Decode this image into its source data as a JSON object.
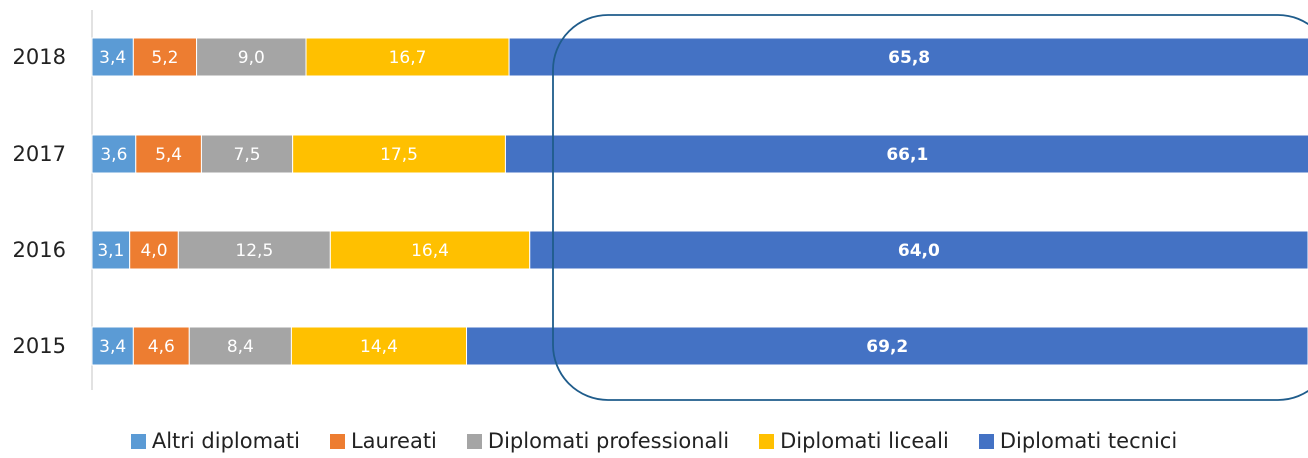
{
  "chart_data": {
    "type": "bar",
    "orientation": "horizontal",
    "stacked": true,
    "categories": [
      "2018",
      "2017",
      "2016",
      "2015"
    ],
    "series": [
      {
        "name": "Altri diplomati",
        "color": "#5B9BD5",
        "values": [
          3.4,
          3.6,
          3.1,
          3.4
        ],
        "labels": [
          "3,4",
          "3,6",
          "3,1",
          "3,4"
        ]
      },
      {
        "name": "Laureati",
        "color": "#ED7D31",
        "values": [
          5.2,
          5.4,
          4.0,
          4.6
        ],
        "labels": [
          "5,2",
          "5,4",
          "4,0",
          "4,6"
        ]
      },
      {
        "name": "Diplomati professionali",
        "color": "#A5A5A5",
        "values": [
          9.0,
          7.5,
          12.5,
          8.4
        ],
        "labels": [
          "9,0",
          "7,5",
          "12,5",
          "8,4"
        ]
      },
      {
        "name": "Diplomati liceali",
        "color": "#FFC000",
        "values": [
          16.7,
          17.5,
          16.4,
          14.4
        ],
        "labels": [
          "16,7",
          "17,5",
          "16,4",
          "14,4"
        ]
      },
      {
        "name": "Diplomati tecnici",
        "color": "#4472C4",
        "values": [
          65.8,
          66.1,
          64.0,
          69.2
        ],
        "labels": [
          "65,8",
          "66,1",
          "64,0",
          "69,2"
        ]
      }
    ],
    "xlim": [
      0,
      100
    ],
    "legend_position": "bottom",
    "grid": false,
    "highlight": "rounded outline around Diplomati tecnici segments",
    "highlight_color": "#1F5C8B"
  }
}
